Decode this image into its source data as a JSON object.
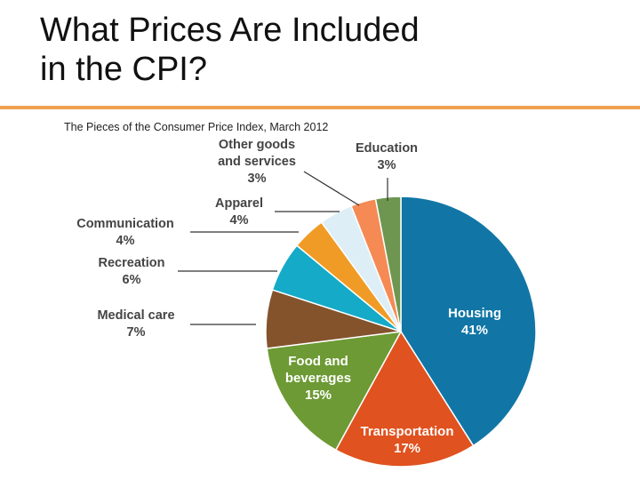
{
  "slide": {
    "title_line1": "What Prices Are Included",
    "title_line2": "in the CPI?"
  },
  "colors": {
    "title_rule": "#f0a050"
  },
  "chart_data": {
    "type": "pie",
    "title": "The Pieces of the Consumer Price Index, March 2012",
    "unit": "%",
    "slices": [
      {
        "label_lines": [
          "Housing"
        ],
        "value": 41,
        "value_text": "41%",
        "color": "#1176a6",
        "label_inside": true
      },
      {
        "label_lines": [
          "Transportation"
        ],
        "value": 17,
        "value_text": "17%",
        "color": "#e0521f",
        "label_inside": true
      },
      {
        "label_lines": [
          "Food and",
          "beverages"
        ],
        "value": 15,
        "value_text": "15%",
        "color": "#6d9a34",
        "label_inside": true
      },
      {
        "label_lines": [
          "Medical care"
        ],
        "value": 7,
        "value_text": "7%",
        "color": "#84532c",
        "label_inside": false
      },
      {
        "label_lines": [
          "Recreation"
        ],
        "value": 6,
        "value_text": "6%",
        "color": "#14aac8",
        "label_inside": false
      },
      {
        "label_lines": [
          "Communication"
        ],
        "value": 4,
        "value_text": "4%",
        "color": "#f09b26",
        "label_inside": false
      },
      {
        "label_lines": [
          "Apparel"
        ],
        "value": 4,
        "value_text": "4%",
        "color": "#ddeef6",
        "label_inside": false
      },
      {
        "label_lines": [
          "Other goods",
          "and services"
        ],
        "value": 3,
        "value_text": "3%",
        "color": "#f58a55",
        "label_inside": false
      },
      {
        "label_lines": [
          "Education"
        ],
        "value": 3,
        "value_text": "3%",
        "color": "#6e9650",
        "label_inside": false
      }
    ]
  }
}
